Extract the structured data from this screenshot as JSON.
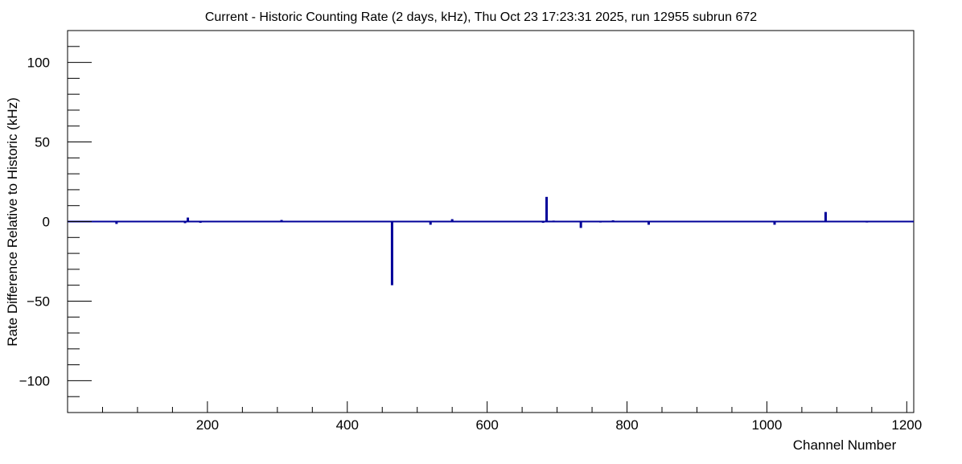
{
  "chart_data": {
    "type": "bar",
    "title": "Current - Historic Counting Rate (2 days, kHz), Thu Oct 23 17:23:31 2025, run 12955 subrun 672",
    "xlabel": "Channel Number",
    "ylabel": "Rate Difference Relative to Historic (kHz)",
    "xlim": [
      0,
      1210
    ],
    "ylim": [
      -120,
      120
    ],
    "x_ticks": [
      200,
      400,
      600,
      800,
      1000,
      1200
    ],
    "x_tick_labels": [
      "200",
      "400",
      "600",
      "800",
      "1000",
      "1200"
    ],
    "y_ticks": [
      -100,
      -50,
      0,
      50,
      100
    ],
    "y_tick_labels": [
      "−100",
      "−50",
      "0",
      "50",
      "100"
    ],
    "grid": false,
    "legend": "none",
    "baseline": 0,
    "series": [
      {
        "x": [
          70,
          168,
          172,
          190,
          248,
          306,
          377,
          434,
          464,
          519,
          550,
          630,
          680,
          685,
          695,
          734,
          762,
          780,
          831,
          1011,
          1084,
          1110,
          1143,
          1165
        ],
        "values": [
          -1.5,
          -1,
          2.5,
          -0.8,
          -0.5,
          1,
          0.5,
          -0.5,
          -40,
          -2,
          1.5,
          0.5,
          -0.8,
          15.5,
          0.6,
          -4,
          -0.6,
          0.8,
          -2,
          -2,
          6,
          -0.5,
          -0.6,
          -0.5
        ]
      }
    ],
    "colors": {
      "series": "#000099",
      "axis": "#000000"
    }
  }
}
